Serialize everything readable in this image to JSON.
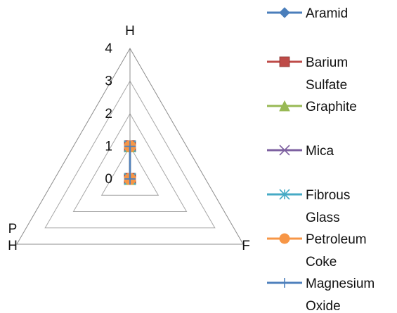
{
  "chart_data": {
    "type": "radar",
    "axes": [
      "H",
      "F",
      "P\nH"
    ],
    "ticks": [
      "0",
      "1",
      "2",
      "3",
      "4"
    ],
    "rmax": 4,
    "grid": true,
    "legend_position": "right",
    "series": [
      {
        "name": "Aramid",
        "color": "#4a7ebb",
        "marker": "diamond",
        "values": [
          1,
          0,
          0
        ]
      },
      {
        "name": "Barium\nSulfate",
        "color": "#be4b48",
        "marker": "square",
        "values": [
          1,
          0,
          0
        ]
      },
      {
        "name": "Graphite",
        "color": "#98b954",
        "marker": "triangle",
        "values": [
          1,
          0,
          0
        ]
      },
      {
        "name": "Mica",
        "color": "#7d60a0",
        "marker": "x",
        "values": [
          1,
          0,
          0
        ]
      },
      {
        "name": "Fibrous\nGlass",
        "color": "#46aac5",
        "marker": "asterisk",
        "values": [
          1,
          0,
          0
        ]
      },
      {
        "name": "Petroleum\nCoke",
        "color": "#f79646",
        "marker": "circle",
        "values": [
          1,
          0,
          0
        ]
      },
      {
        "name": "Magnesium\nOxide",
        "color": "#4f81bd",
        "marker": "plus",
        "values": [
          1,
          0,
          0
        ]
      }
    ]
  }
}
